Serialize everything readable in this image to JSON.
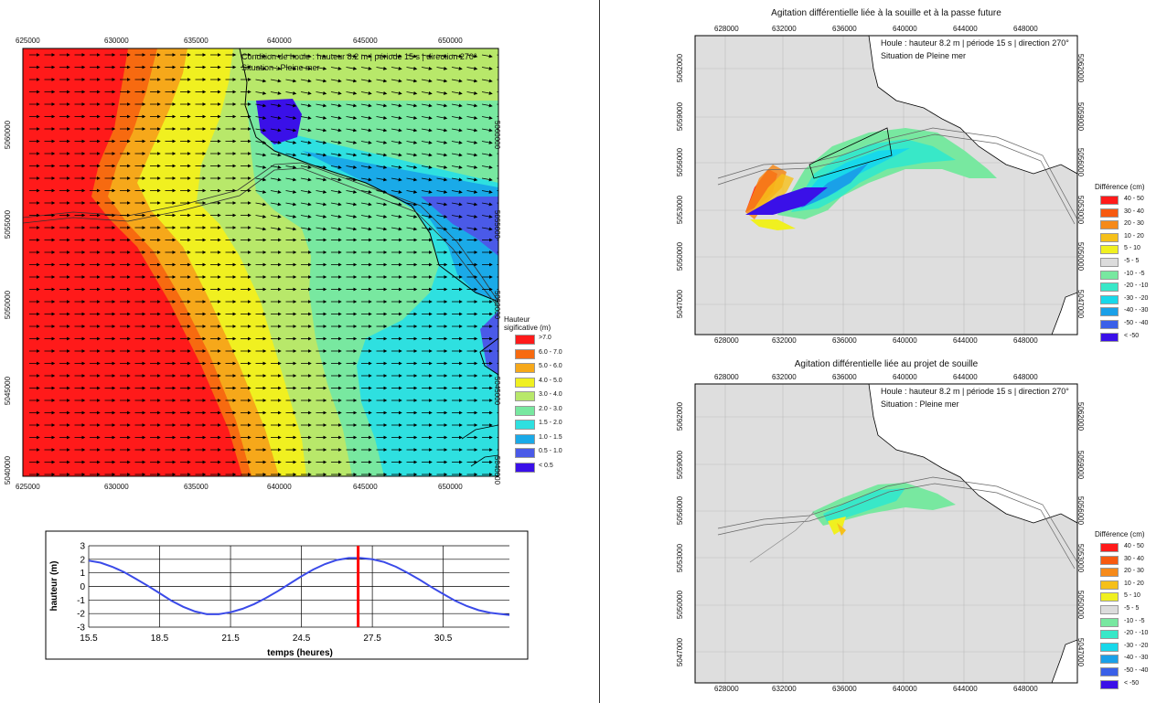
{
  "left_map": {
    "x_ticks": [
      "625000",
      "630000",
      "635000",
      "640000",
      "645000",
      "650000"
    ],
    "y_ticks": [
      "5060000",
      "5055000",
      "5050000",
      "5045000",
      "5040000"
    ],
    "caption_line1": "Condition de houle : hauteur 8.2 m | période 15 s | direction 270°",
    "caption_line2": "Situation : Pleine mer",
    "legend_title_1": "Hauteur",
    "legend_title_2": "sigificative (m)",
    "legend": [
      {
        "label": ">7.0",
        "color": "#ff1a1a"
      },
      {
        "label": "6.0 - 7.0",
        "color": "#f76a10"
      },
      {
        "label": "5.0 - 6.0",
        "color": "#f6a81a"
      },
      {
        "label": "4.0 - 5.0",
        "color": "#f0f020"
      },
      {
        "label": "3.0 - 4.0",
        "color": "#b8e86a"
      },
      {
        "label": "2.0 - 3.0",
        "color": "#78e8a0"
      },
      {
        "label": "1.5 - 2.0",
        "color": "#2ee0e0"
      },
      {
        "label": "1.0 - 1.5",
        "color": "#1aaae8"
      },
      {
        "label": "0.5 - 1.0",
        "color": "#4a5ae8"
      },
      {
        "label": "< 0.5",
        "color": "#3a10e8"
      }
    ]
  },
  "tide_chart": {
    "ylabel": "hauteur (m)",
    "xlabel": "temps (heures)",
    "y_ticks": [
      "3",
      "2",
      "1",
      "0",
      "-1",
      "-2",
      "-3"
    ],
    "x_ticks": [
      "15.5",
      "18.5",
      "21.5",
      "24.5",
      "27.5",
      "30.5"
    ]
  },
  "chart_data": {
    "type": "line",
    "xlabel": "temps (heures)",
    "ylabel": "hauteur (m)",
    "xlim": [
      15.5,
      33.3
    ],
    "ylim": [
      -3,
      3
    ],
    "x": [
      15.5,
      16.0,
      16.5,
      17.0,
      17.5,
      18.0,
      18.5,
      19.0,
      19.5,
      20.0,
      20.5,
      21.0,
      21.5,
      22.0,
      22.5,
      23.0,
      23.5,
      24.0,
      24.5,
      25.0,
      25.5,
      26.0,
      26.5,
      27.0,
      27.5,
      28.0,
      28.5,
      29.0,
      29.5,
      30.0,
      30.5,
      31.0,
      31.5,
      32.0,
      32.5,
      33.0,
      33.3
    ],
    "series": [
      {
        "values": [
          1.9,
          1.75,
          1.45,
          1.05,
          0.55,
          0.05,
          -0.5,
          -1.05,
          -1.5,
          -1.85,
          -2.05,
          -2.05,
          -1.9,
          -1.65,
          -1.3,
          -0.85,
          -0.35,
          0.2,
          0.75,
          1.25,
          1.65,
          1.95,
          2.1,
          2.1,
          2.0,
          1.8,
          1.45,
          1.0,
          0.5,
          -0.05,
          -0.55,
          -1.05,
          -1.45,
          -1.75,
          -1.95,
          -2.05,
          -2.1
        ]
      }
    ],
    "marker_x": 26.9,
    "marker_color": "#ff0000",
    "line_color": "#3a4ae8"
  },
  "right_top": {
    "title": "Agitation différentielle  liée à la souille et à la passe future",
    "caption_line1": "Houle : hauteur 8.2 m | période 15 s | direction 270°",
    "caption_line2": "Situation de Pleine mer",
    "x_ticks": [
      "628000",
      "632000",
      "636000",
      "640000",
      "644000",
      "648000"
    ],
    "y_ticks": [
      "5062000",
      "5059000",
      "5056000",
      "5053000",
      "5050000",
      "5047000"
    ],
    "legend_title": "Différence (cm)",
    "legend": [
      {
        "label": "40 - 50",
        "color": "#ff1a1a"
      },
      {
        "label": "30 - 40",
        "color": "#f75a10"
      },
      {
        "label": "20 - 30",
        "color": "#f68a1a"
      },
      {
        "label": "10 - 20",
        "color": "#f6c01a"
      },
      {
        "label": "5 - 10",
        "color": "#f0f020"
      },
      {
        "label": "-5 - 5",
        "color": "#dcdcdc"
      },
      {
        "label": "-10 - -5",
        "color": "#78e8a0"
      },
      {
        "label": "-20 - -10",
        "color": "#38e8c8"
      },
      {
        "label": "-30 - -20",
        "color": "#18d8ea"
      },
      {
        "label": "-40 - -30",
        "color": "#1aa0e8"
      },
      {
        "label": "-50 - -40",
        "color": "#3a60e8"
      },
      {
        "label": "< -50",
        "color": "#3a10e8"
      }
    ]
  },
  "right_bottom": {
    "title": "Agitation différentielle  liée au projet de souille",
    "caption_line1": "Houle : hauteur 8.2 m | période 15 s | direction 270°",
    "caption_line2": "Situation : Pleine mer",
    "x_ticks": [
      "628000",
      "632000",
      "636000",
      "640000",
      "644000",
      "648000"
    ],
    "y_ticks": [
      "5062000",
      "5059000",
      "5056000",
      "5053000",
      "5050000",
      "5047000"
    ],
    "legend_title": "Différence (cm)",
    "legend": [
      {
        "label": "40 - 50",
        "color": "#ff1a1a"
      },
      {
        "label": "30 - 40",
        "color": "#f75a10"
      },
      {
        "label": "20 - 30",
        "color": "#f68a1a"
      },
      {
        "label": "10 - 20",
        "color": "#f6c01a"
      },
      {
        "label": "5 - 10",
        "color": "#f0f020"
      },
      {
        "label": "-5 - 5",
        "color": "#dcdcdc"
      },
      {
        "label": "-10 - -5",
        "color": "#78e8a0"
      },
      {
        "label": "-20 - -10",
        "color": "#38e8c8"
      },
      {
        "label": "-30 - -20",
        "color": "#18d8ea"
      },
      {
        "label": "-40 - -30",
        "color": "#1aa0e8"
      },
      {
        "label": "-50 - -40",
        "color": "#3a60e8"
      },
      {
        "label": "< -50",
        "color": "#3a10e8"
      }
    ]
  }
}
